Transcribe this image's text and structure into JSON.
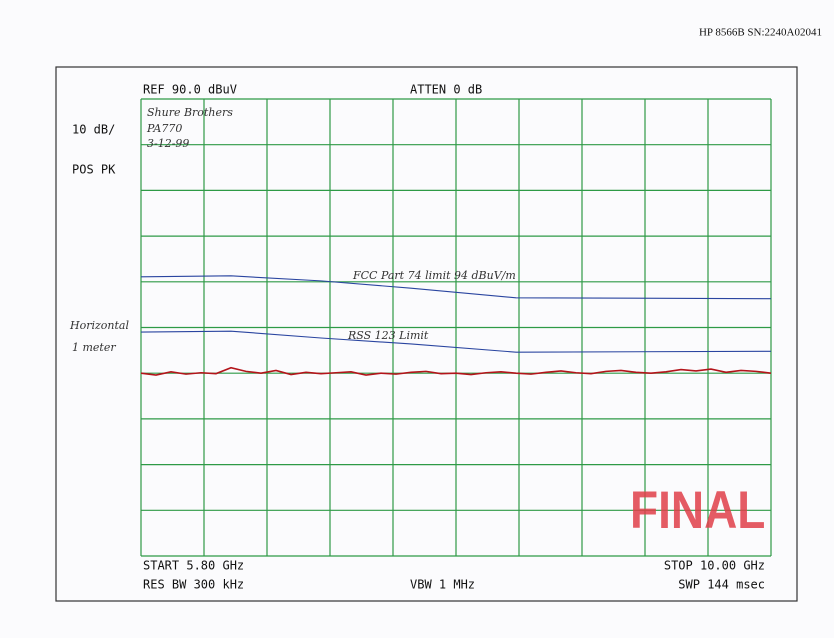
{
  "header": "HP 8566B  SN:2240A02041",
  "chart_data": {
    "type": "line",
    "ref_label": "REF  90.0 dBuV",
    "atten_label": "ATTEN 0 dB",
    "scale_label": "10 dB/",
    "detector_label": "POS PK",
    "start_label": "START 5.80 GHz",
    "stop_label": "STOP 10.00 GHz",
    "rbw_label": "RES BW 300 kHz",
    "vbw_label": "VBW 1 MHz",
    "sweep_label": "SWP 144 msec",
    "notes": [
      "Shure Brothers",
      "PA770",
      "3-12-99"
    ],
    "side_notes": [
      "Horizontal",
      "1 meter"
    ],
    "stamp": "FINAL",
    "xlim": [
      5.8,
      10.0
    ],
    "ylim": [
      -10,
      90
    ],
    "xticks": [
      5.8,
      6.22,
      6.64,
      7.06,
      7.48,
      7.9,
      8.32,
      8.74,
      9.16,
      9.58,
      10.0
    ],
    "yticks": [
      -10,
      0,
      10,
      20,
      30,
      40,
      50,
      60,
      70,
      80,
      90
    ],
    "grid": true,
    "grid_color": "#2e9a46",
    "series": [
      {
        "name": "FCC Part 74 limit  94 dBuV/m",
        "color": "#2a45a0",
        "x": [
          5.8,
          6.4,
          7.0,
          7.6,
          8.3,
          10.0
        ],
        "values": [
          51.1,
          51.3,
          50.2,
          48.6,
          46.5,
          46.3
        ]
      },
      {
        "name": "RSS 123 Limit",
        "color": "#2a45a0",
        "x": [
          5.8,
          6.4,
          7.0,
          7.6,
          8.3,
          10.0
        ],
        "values": [
          39.0,
          39.2,
          37.7,
          36.4,
          34.6,
          34.8
        ]
      },
      {
        "color": "#b3141a",
        "x": [
          5.8,
          5.9,
          6.0,
          6.1,
          6.2,
          6.3,
          6.4,
          6.5,
          6.6,
          6.7,
          6.8,
          6.9,
          7.0,
          7.1,
          7.2,
          7.3,
          7.4,
          7.5,
          7.6,
          7.7,
          7.8,
          7.9,
          8.0,
          8.1,
          8.2,
          8.3,
          8.4,
          8.5,
          8.6,
          8.7,
          8.8,
          8.9,
          9.0,
          9.1,
          9.2,
          9.3,
          9.4,
          9.5,
          9.6,
          9.7,
          9.8,
          9.9,
          10.0
        ],
        "values": [
          30.0,
          29.6,
          30.3,
          29.8,
          30.1,
          29.9,
          31.2,
          30.4,
          30.0,
          30.6,
          29.7,
          30.2,
          29.9,
          30.1,
          30.3,
          29.6,
          30.0,
          29.8,
          30.2,
          30.4,
          29.9,
          30.0,
          29.7,
          30.1,
          30.3,
          30.0,
          29.8,
          30.2,
          30.5,
          30.1,
          29.9,
          30.4,
          30.6,
          30.2,
          30.0,
          30.3,
          30.8,
          30.5,
          30.9,
          30.2,
          30.6,
          30.4,
          30.0
        ]
      }
    ]
  }
}
